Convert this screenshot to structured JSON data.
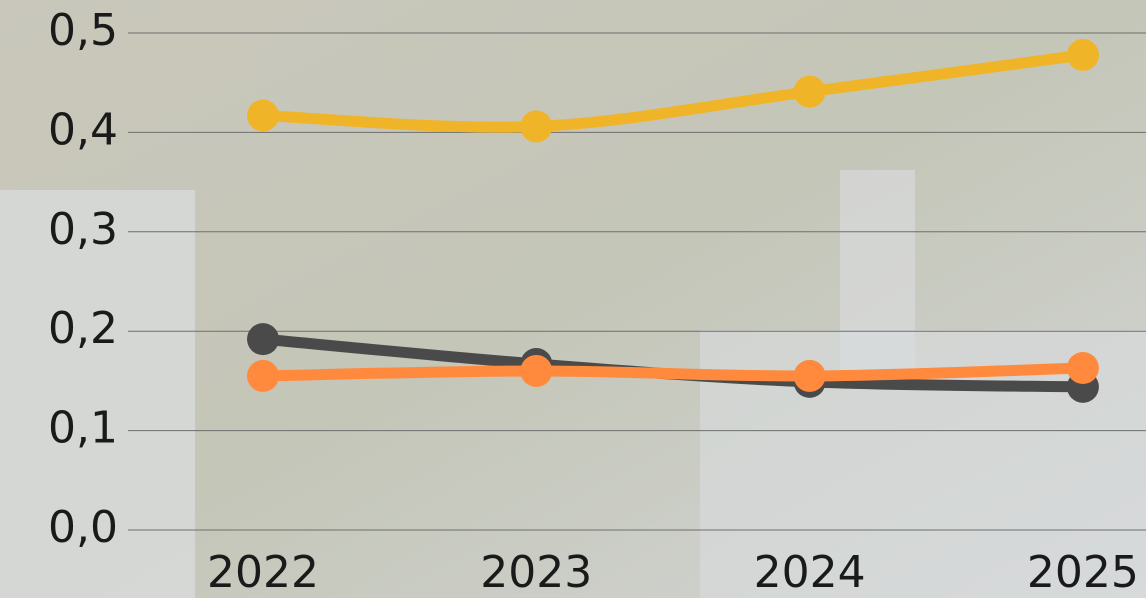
{
  "chart_data": {
    "type": "line",
    "categories": [
      "2022",
      "2023",
      "2024",
      "2025"
    ],
    "series": [
      {
        "color": "#f0b429",
        "values": [
          0.417,
          0.406,
          0.441,
          0.478
        ]
      },
      {
        "color": "#4a4a4a",
        "values": [
          0.192,
          0.167,
          0.149,
          0.144
        ]
      },
      {
        "color": "#ff8a3d",
        "values": [
          0.155,
          0.16,
          0.155,
          0.163
        ]
      }
    ],
    "ylim": [
      0,
      0.5
    ],
    "yticks": [
      {
        "value": 0,
        "label": "0,0"
      },
      {
        "value": 0.1,
        "label": "0,1"
      },
      {
        "value": 0.2,
        "label": "0,2"
      },
      {
        "value": 0.3,
        "label": "0,3"
      },
      {
        "value": 0.4,
        "label": "0,4"
      },
      {
        "value": 0.5,
        "label": "0,5"
      }
    ],
    "grid": true,
    "smooth": true
  }
}
